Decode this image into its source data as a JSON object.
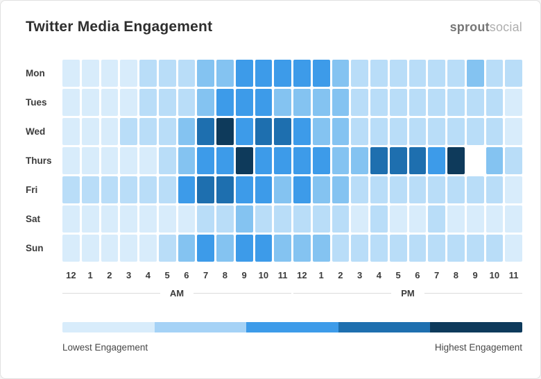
{
  "header": {
    "title": "Twitter Media Engagement",
    "logo": {
      "sprout": "sprout",
      "social": "social"
    }
  },
  "chart_data": {
    "type": "heatmap",
    "title": "Twitter Media Engagement",
    "rows": [
      "Mon",
      "Tues",
      "Wed",
      "Thurs",
      "Fri",
      "Sat",
      "Sun"
    ],
    "columns": [
      "12",
      "1",
      "2",
      "3",
      "4",
      "5",
      "6",
      "7",
      "8",
      "9",
      "10",
      "11",
      "12",
      "1",
      "2",
      "3",
      "4",
      "5",
      "6",
      "7",
      "8",
      "9",
      "10",
      "11"
    ],
    "column_groups": [
      {
        "label": "AM",
        "start": 0,
        "span": 12
      },
      {
        "label": "PM",
        "start": 12,
        "span": 12
      }
    ],
    "values": [
      [
        1,
        1,
        1,
        1,
        2,
        2,
        2,
        3,
        3,
        4,
        4,
        4,
        4,
        4,
        3,
        2,
        2,
        2,
        2,
        2,
        2,
        3,
        2,
        2
      ],
      [
        1,
        1,
        1,
        1,
        2,
        2,
        2,
        3,
        4,
        4,
        4,
        3,
        3,
        3,
        3,
        2,
        2,
        2,
        2,
        2,
        2,
        2,
        2,
        1
      ],
      [
        1,
        1,
        1,
        2,
        2,
        2,
        3,
        5,
        6,
        4,
        5,
        5,
        4,
        3,
        3,
        2,
        2,
        2,
        2,
        2,
        2,
        2,
        2,
        1
      ],
      [
        1,
        1,
        1,
        1,
        1,
        2,
        3,
        4,
        4,
        6,
        4,
        4,
        4,
        4,
        3,
        3,
        5,
        5,
        5,
        4,
        6,
        0,
        3,
        2
      ],
      [
        2,
        2,
        2,
        2,
        2,
        2,
        4,
        5,
        5,
        4,
        4,
        3,
        4,
        3,
        3,
        2,
        2,
        2,
        2,
        2,
        2,
        2,
        2,
        1
      ],
      [
        1,
        1,
        1,
        1,
        1,
        1,
        1,
        2,
        2,
        3,
        2,
        2,
        2,
        2,
        2,
        1,
        2,
        1,
        1,
        2,
        1,
        1,
        1,
        1
      ],
      [
        1,
        1,
        1,
        1,
        1,
        2,
        3,
        4,
        3,
        4,
        4,
        3,
        3,
        3,
        2,
        2,
        2,
        2,
        2,
        2,
        2,
        2,
        2,
        1
      ]
    ],
    "value_scale": {
      "min": 0,
      "max": 6
    },
    "palette": {
      "0": "#FFFFFF",
      "1": "#D8ECFB",
      "2": "#B9DDF8",
      "3": "#84C3F1",
      "4": "#3D9BE9",
      "5": "#1E6FAF",
      "6": "#0E3A5B"
    },
    "legend": {
      "colors": [
        "#D8ECFB",
        "#A5D2F6",
        "#3D9BE9",
        "#1E6FAF",
        "#0E3A5B"
      ],
      "low_label": "Lowest Engagement",
      "high_label": "Highest Engagement"
    }
  }
}
